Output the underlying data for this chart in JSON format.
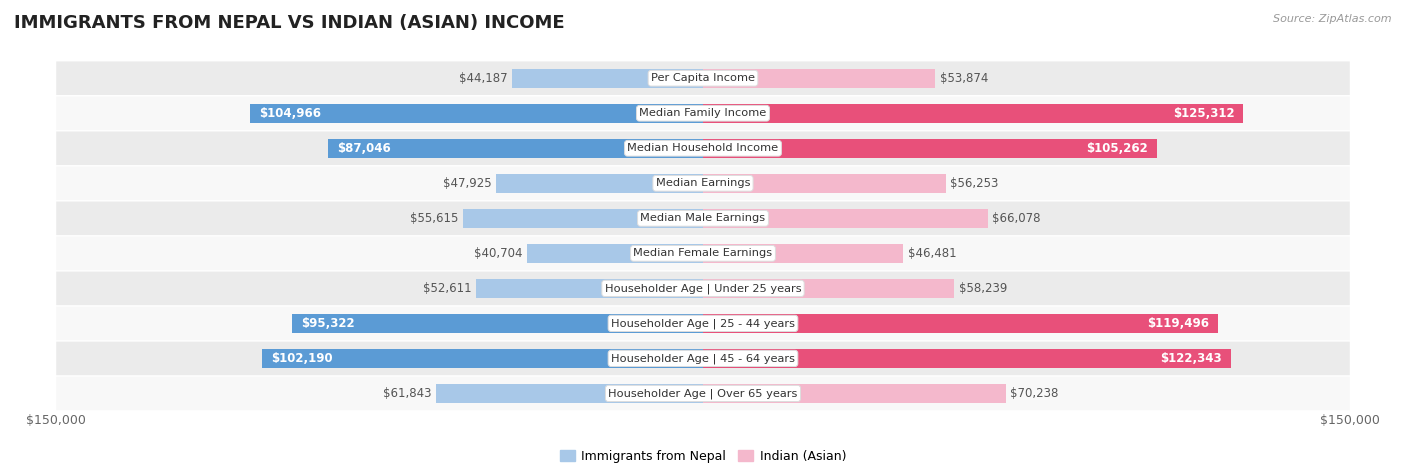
{
  "title": "IMMIGRANTS FROM NEPAL VS INDIAN (ASIAN) INCOME",
  "source": "Source: ZipAtlas.com",
  "categories": [
    "Per Capita Income",
    "Median Family Income",
    "Median Household Income",
    "Median Earnings",
    "Median Male Earnings",
    "Median Female Earnings",
    "Householder Age | Under 25 years",
    "Householder Age | 25 - 44 years",
    "Householder Age | 45 - 64 years",
    "Householder Age | Over 65 years"
  ],
  "nepal_values": [
    44187,
    104966,
    87046,
    47925,
    55615,
    40704,
    52611,
    95322,
    102190,
    61843
  ],
  "indian_values": [
    53874,
    125312,
    105262,
    56253,
    66078,
    46481,
    58239,
    119496,
    122343,
    70238
  ],
  "nepal_labels": [
    "$44,187",
    "$104,966",
    "$87,046",
    "$47,925",
    "$55,615",
    "$40,704",
    "$52,611",
    "$95,322",
    "$102,190",
    "$61,843"
  ],
  "indian_labels": [
    "$53,874",
    "$125,312",
    "$105,262",
    "$56,253",
    "$66,078",
    "$46,481",
    "$58,239",
    "$119,496",
    "$122,343",
    "$70,238"
  ],
  "nepal_color_light": "#a8c8e8",
  "nepal_color_dark": "#5b9bd5",
  "indian_color_light": "#f4b8cc",
  "indian_color_dark": "#e8507a",
  "nepal_label_white": [
    false,
    true,
    true,
    false,
    false,
    false,
    false,
    true,
    true,
    false
  ],
  "indian_label_white": [
    false,
    true,
    true,
    false,
    false,
    false,
    false,
    true,
    true,
    false
  ],
  "max_value": 150000,
  "bg_odd_color": "#ebebeb",
  "bg_even_color": "#f8f8f8",
  "title_fontsize": 13,
  "label_fontsize": 8.5,
  "axis_label_fontsize": 9,
  "legend_fontsize": 9
}
